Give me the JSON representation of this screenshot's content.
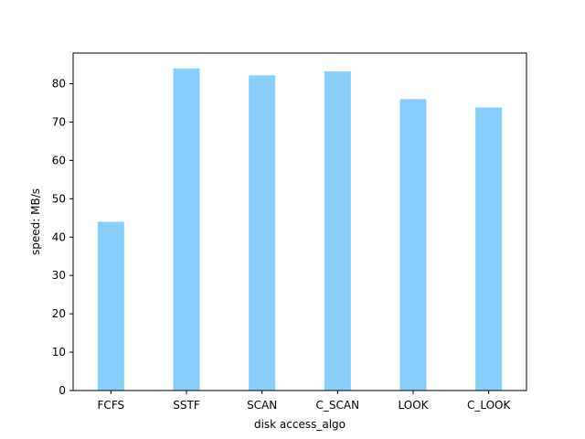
{
  "chart_data": {
    "type": "bar",
    "title": "",
    "xlabel": "disk access_algo",
    "ylabel": "speed: MB/s",
    "categories": [
      "FCFS",
      "SSTF",
      "SCAN",
      "C_SCAN",
      "LOOK",
      "C_LOOK"
    ],
    "values": [
      44,
      84,
      82.2,
      83.2,
      76,
      73.8
    ],
    "ylim": [
      0,
      88
    ],
    "yticks": [
      0,
      10,
      20,
      30,
      40,
      50,
      60,
      70,
      80
    ],
    "grid": false,
    "legend": "none",
    "bar_color": "#87CEFA"
  }
}
